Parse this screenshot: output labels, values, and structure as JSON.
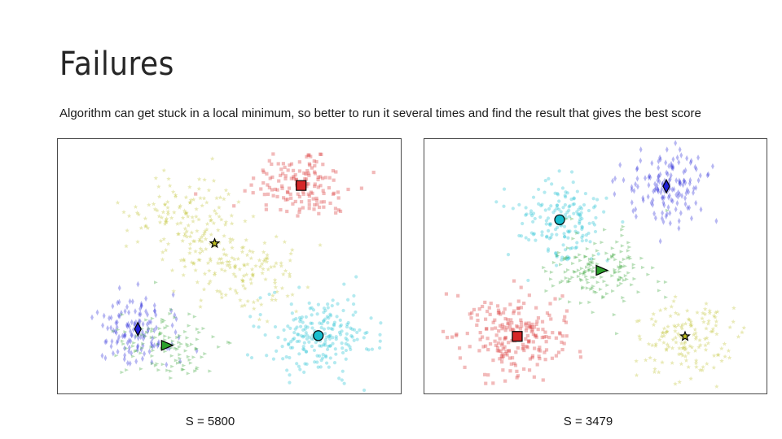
{
  "slide": {
    "title": "Failures",
    "subtitle": "Algorithm can get stuck in a local minimum, so better to run it several times and find the result that gives the best score"
  },
  "chart_data": [
    {
      "type": "scatter",
      "score_label": "S = 5800",
      "xlim": [
        0,
        420
      ],
      "ylim": [
        0,
        312
      ],
      "grid": false,
      "axes_visible": false,
      "clusters": [
        {
          "color": "#d62728",
          "marker": "square",
          "center": [
            298,
            57
          ],
          "spread": [
            32,
            22
          ],
          "n": 150
        },
        {
          "color": "#bcbd22",
          "marker": "star",
          "center": [
            192,
            128
          ],
          "spread": [
            62,
            48
          ],
          "n": 280,
          "subcenters": [
            [
              158,
              100
            ],
            [
              226,
              160
            ]
          ]
        },
        {
          "color": "#1f1fd6",
          "marker": "diamond",
          "center": [
            98,
            233
          ],
          "spread": [
            24,
            20
          ],
          "n": 130
        },
        {
          "color": "#2ca02c",
          "marker": "triangle",
          "center": [
            133,
            253
          ],
          "spread": [
            26,
            20
          ],
          "n": 120
        },
        {
          "color": "#17becf",
          "marker": "circle",
          "center": [
            319,
            241
          ],
          "spread": [
            34,
            24
          ],
          "n": 220
        }
      ],
      "colors": {
        "red": "#d62728",
        "olive": "#bcbd22",
        "blue": "#1f1fd6",
        "green": "#2ca02c",
        "cyan": "#17becf"
      }
    },
    {
      "type": "scatter",
      "score_label": "S = 3479",
      "xlim": [
        0,
        420
      ],
      "ylim": [
        0,
        312
      ],
      "grid": false,
      "axes_visible": false,
      "clusters": [
        {
          "color": "#1f1fd6",
          "marker": "diamond",
          "center": [
            297,
            58
          ],
          "spread": [
            28,
            22
          ],
          "n": 150
        },
        {
          "color": "#17becf",
          "marker": "circle",
          "center": [
            166,
            99
          ],
          "spread": [
            30,
            24
          ],
          "n": 170
        },
        {
          "color": "#2ca02c",
          "marker": "triangle",
          "center": [
            217,
            161
          ],
          "spread": [
            30,
            22
          ],
          "n": 160
        },
        {
          "color": "#d62728",
          "marker": "square",
          "center": [
            114,
            242
          ],
          "spread": [
            34,
            24
          ],
          "n": 220
        },
        {
          "color": "#bcbd22",
          "marker": "star",
          "center": [
            320,
            242
          ],
          "spread": [
            30,
            24
          ],
          "n": 150
        }
      ]
    }
  ]
}
